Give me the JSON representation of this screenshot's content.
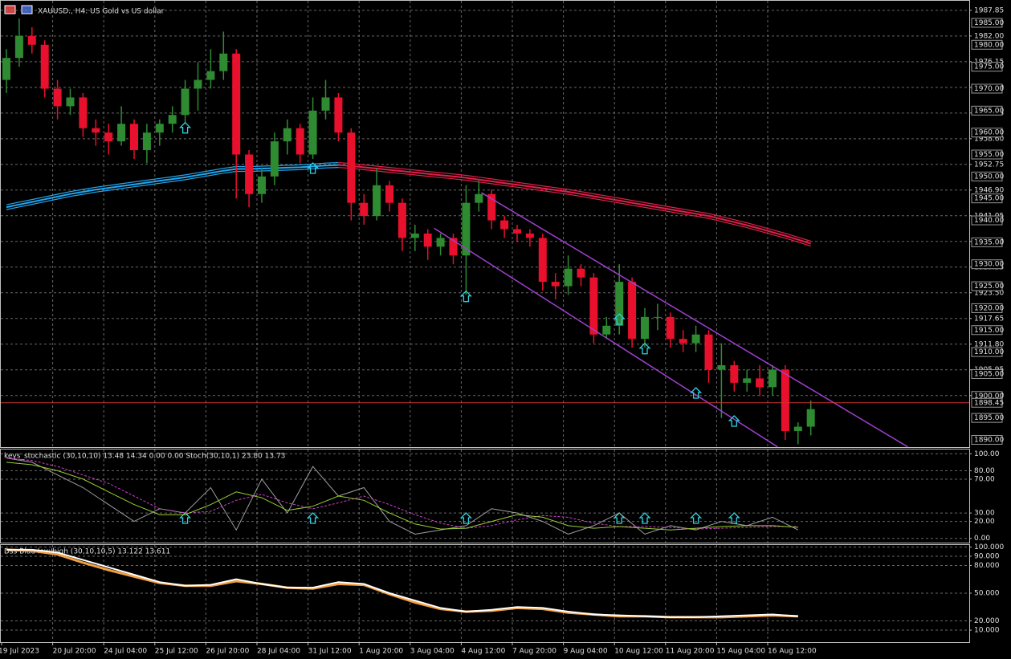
{
  "chart_data": [
    {
      "type": "candlestick",
      "title": "XAUUSD., H4: US Gold vs US dollar",
      "categories": [
        "19 Jul 2023",
        null,
        null,
        null,
        "20 Jul 20:00",
        null,
        null,
        null,
        "24 Jul 04:00",
        null,
        null,
        null,
        "25 Jul 12:00",
        null,
        null,
        null,
        "26 Jul 20:00",
        null,
        null,
        null,
        "28 Jul 04:00",
        null,
        null,
        null,
        "31 Jul 12:00",
        null,
        null,
        null,
        "1 Aug 20:00",
        null,
        null,
        null,
        "3 Aug 04:00",
        null,
        null,
        null,
        "4 Aug 12:00",
        null,
        null,
        null,
        "7 Aug 20:00",
        null,
        null,
        null,
        "9 Aug 04:00",
        null,
        null,
        null,
        "10 Aug 12:00",
        null,
        null,
        null,
        "11 Aug 20:00",
        null,
        null,
        null,
        "15 Aug 04:00",
        null,
        null,
        null,
        "16 Aug 12:00",
        null,
        null,
        null
      ],
      "open": [
        1972,
        1977,
        1982,
        1980,
        1970,
        1966,
        1968,
        1961,
        1960,
        1958,
        1962,
        1956,
        1960,
        1962,
        1964,
        1970,
        1972,
        1974,
        1978,
        1955,
        1946,
        1950,
        1958,
        1961,
        1955,
        1965,
        1968,
        1960,
        1944,
        1941,
        1948,
        1944,
        1936,
        1937,
        1934,
        1936,
        1932,
        1944,
        1946,
        1940,
        1938,
        1937,
        1936,
        1926,
        1925,
        1929,
        1927,
        1914,
        1916,
        1926,
        1913,
        1918,
        1918,
        1913,
        1912,
        1914,
        1906,
        1907,
        1903,
        1904,
        1902,
        1906,
        1892,
        1893
      ],
      "high": [
        1979,
        1986,
        1984,
        1981,
        1972,
        1970,
        1969,
        1963,
        1962,
        1966,
        1963,
        1962,
        1963,
        1966,
        1972,
        1976,
        1979,
        1983,
        1979,
        1956,
        1952,
        1960,
        1963,
        1962,
        1968,
        1972,
        1969,
        1961,
        1946,
        1952,
        1949,
        1945,
        1939,
        1938,
        1937,
        1937,
        1948,
        1949,
        1947,
        1941,
        1939,
        1938,
        1937,
        1928,
        1932,
        1930,
        1928,
        1918,
        1930,
        1927,
        1920,
        1921,
        1919,
        1915,
        1916,
        1915,
        1912,
        1908,
        1906,
        1907,
        1907,
        1907,
        1894,
        1899
      ],
      "low": [
        1969,
        1975,
        1978,
        1968,
        1963,
        1964,
        1959,
        1957,
        1955,
        1957,
        1954,
        1953,
        1957,
        1960,
        1962,
        1965,
        1970,
        1972,
        1945,
        1943,
        1944,
        1948,
        1955,
        1953,
        1954,
        1963,
        1958,
        1940,
        1939,
        1940,
        1942,
        1933,
        1933,
        1931,
        1932,
        1930,
        1923,
        1942,
        1938,
        1936,
        1935,
        1934,
        1924,
        1922,
        1923,
        1925,
        1912,
        1913,
        1914,
        1911,
        1911,
        1915,
        1911,
        1910,
        1910,
        1903,
        1895,
        1901,
        1901,
        1900,
        1900,
        1890,
        1889,
        1891
      ],
      "close": [
        1977,
        1982,
        1980,
        1970,
        1966,
        1968,
        1961,
        1960,
        1958,
        1962,
        1956,
        1960,
        1962,
        1964,
        1970,
        1972,
        1974,
        1978,
        1955,
        1946,
        1950,
        1958,
        1961,
        1955,
        1965,
        1968,
        1960,
        1944,
        1941,
        1948,
        1944,
        1936,
        1937,
        1934,
        1936,
        1932,
        1944,
        1946,
        1940,
        1938,
        1937,
        1936,
        1926,
        1925,
        1929,
        1927,
        1914,
        1916,
        1926,
        1913,
        1918,
        1918,
        1913,
        1912,
        1914,
        1906,
        1907,
        1903,
        1904,
        1902,
        1906,
        1892,
        1893,
        1897
      ],
      "up_color": "#2e8b32",
      "down_color": "#e8102c",
      "series": [
        {
          "color": "#22a7f0",
          "values": [
            1943,
            1943.6,
            1944.2,
            1944.8,
            1945.4,
            1946,
            1946.5,
            1947,
            1947.4,
            1947.8,
            1948.2,
            1948.6,
            1949,
            1949.4,
            1949.8,
            1950.3,
            1950.8,
            1951.3,
            1951.7,
            1951.7,
            1951.8,
            1951.9,
            1952,
            1952.1,
            1952.3,
            1952.5,
            1952.6,
            null,
            null,
            null,
            null,
            null,
            null,
            null,
            null,
            null,
            null,
            null,
            null,
            null,
            null,
            null,
            null,
            null,
            null,
            null,
            null,
            null,
            null,
            null,
            null,
            null,
            null,
            null,
            null,
            null,
            null,
            null,
            null,
            null,
            null,
            null,
            null,
            null
          ]
        },
        {
          "color": "#e0204a",
          "values": [
            null,
            null,
            null,
            null,
            null,
            null,
            null,
            null,
            null,
            null,
            null,
            null,
            null,
            null,
            null,
            null,
            null,
            null,
            null,
            null,
            null,
            null,
            null,
            null,
            null,
            null,
            1952.6,
            1952.4,
            1952.1,
            1951.8,
            1951.5,
            1951.2,
            1950.9,
            1950.6,
            1950.3,
            1950,
            1949.7,
            1949.3,
            1948.9,
            1948.5,
            1948.1,
            1947.7,
            1947.3,
            1946.9,
            1946.5,
            1946,
            1945.5,
            1945,
            1944.5,
            1944,
            1943.5,
            1943,
            1942.5,
            1942,
            1941.5,
            1941,
            1940.3,
            1939.6,
            1938.9,
            1938.1,
            1937.3,
            1936.5,
            1935.6,
            1934.7
          ]
        }
      ],
      "channels": [
        {
          "color": "#a040d0",
          "x": [
            37.2,
            70.6
          ],
          "y": [
            1946.3,
            1888.4
          ]
        },
        {
          "color": "#a040d0",
          "x": [
            33.5,
            60.4
          ],
          "y": [
            1938.2,
            1888.4
          ]
        }
      ],
      "signals": {
        "color": "#30d0e0",
        "x": [
          14,
          24,
          36,
          48,
          50,
          54,
          57
        ],
        "y": [
          1961,
          1951.8,
          1922.6,
          1917.4,
          1910.7,
          1900.6,
          1894.2
        ]
      },
      "price_line": {
        "value": 1898.45,
        "color": "#c83232"
      },
      "ylim": [
        1888.35,
        1990.2
      ],
      "yticks": [
        1987.85,
        {
          "value": 1982,
          "label": "1982.00"
        },
        1976.15,
        {
          "value": 1970.3,
          "label": "1970.30"
        },
        1964.45,
        {
          "value": 1958.6,
          "label": "1958.60"
        },
        1952.75,
        {
          "value": 1946.9,
          "label": "1946.90"
        },
        1941.05,
        {
          "value": 1935.2,
          "label": "1935.20"
        },
        1929.35,
        {
          "value": 1923.5,
          "label": "1923.50"
        },
        1917.65,
        {
          "value": 1911.8,
          "label": "1911.80"
        },
        1905.95,
        {
          "value": 1900.1,
          "label": "1900.10"
        }
      ],
      "levels": [
        {
          "value": 1985,
          "label": "1985.00"
        },
        {
          "value": 1980,
          "label": "1980.00"
        },
        {
          "value": 1975,
          "label": "1975.00"
        },
        {
          "value": 1970,
          "label": "1970.00"
        },
        {
          "value": 1965,
          "label": "1965.00"
        },
        {
          "value": 1960,
          "label": "1960.00"
        },
        {
          "value": 1955,
          "label": "1955.00"
        },
        {
          "value": 1950,
          "label": "1950.00"
        },
        {
          "value": 1945,
          "label": "1945.00"
        },
        {
          "value": 1940,
          "label": "1940.00"
        },
        {
          "value": 1935,
          "label": "1935.00"
        },
        {
          "value": 1930,
          "label": "1930.00"
        },
        {
          "value": 1925,
          "label": "1925.00"
        },
        {
          "value": 1920,
          "label": "1920.00"
        },
        {
          "value": 1915,
          "label": "1915.00"
        },
        {
          "value": 1910,
          "label": "1910.00"
        },
        {
          "value": 1905,
          "label": "1905.00"
        },
        {
          "value": 1900,
          "label": "1900.00"
        },
        {
          "value": 1895,
          "label": "1895.00"
        },
        {
          "value": 1890,
          "label": "1890.00"
        }
      ],
      "grid": true
    },
    {
      "type": "line",
      "title": "keys_stochastic (30,10,10) 13.48 14.34 0.00 0.00 Stoch(30,10,1) 23.80 13.73",
      "x": [
        0,
        2,
        4,
        6,
        8,
        10,
        12,
        14,
        16,
        18,
        20,
        22,
        24,
        26,
        28,
        30,
        32,
        34,
        36,
        38,
        40,
        42,
        44,
        46,
        48,
        50,
        52,
        54,
        56,
        58,
        60,
        62
      ],
      "series": [
        {
          "color": "#a0a0a0",
          "values": [
            95,
            90,
            75,
            60,
            40,
            20,
            35,
            30,
            60,
            10,
            70,
            30,
            85,
            50,
            60,
            20,
            5,
            10,
            15,
            35,
            30,
            20,
            5,
            15,
            30,
            5,
            15,
            10,
            20,
            15,
            25,
            10
          ]
        },
        {
          "color": "#d040d0",
          "dash": true,
          "values": [
            95,
            92,
            85,
            75,
            65,
            50,
            35,
            30,
            32,
            45,
            52,
            42,
            35,
            42,
            50,
            40,
            28,
            18,
            12,
            15,
            22,
            27,
            25,
            18,
            14,
            14,
            13,
            11,
            12,
            13,
            14,
            14
          ]
        },
        {
          "color": "#9acd32",
          "values": [
            90,
            87,
            80,
            70,
            55,
            40,
            28,
            28,
            40,
            55,
            48,
            33,
            38,
            50,
            45,
            30,
            17,
            11,
            12,
            20,
            28,
            25,
            15,
            12,
            14,
            12,
            10,
            12,
            14,
            15,
            15,
            13
          ]
        }
      ],
      "ylim": [
        -5,
        106
      ],
      "yticks": [
        {
          "value": 100,
          "label": "100.00"
        },
        {
          "value": 80,
          "label": "80.00"
        },
        {
          "value": 70,
          "label": "70.00"
        },
        {
          "value": 30,
          "label": "30.00"
        },
        {
          "value": 20,
          "label": "20.00"
        },
        {
          "value": 0,
          "label": "0.00"
        }
      ],
      "grid": true
    },
    {
      "type": "line",
      "title": "Dss Blau low/high (30,10,10,5) 13.122 13.611",
      "x": [
        0,
        2,
        4,
        6,
        8,
        10,
        12,
        14,
        16,
        18,
        20,
        22,
        24,
        26,
        28,
        30,
        32,
        34,
        36,
        38,
        40,
        42,
        44,
        46,
        48,
        50,
        52,
        54,
        56,
        58,
        60,
        62
      ],
      "series": [
        {
          "color": "#f0a040",
          "width": 3,
          "values": [
            97,
            96,
            92,
            83,
            75,
            68,
            61,
            58,
            58,
            63,
            60,
            56,
            55,
            60,
            59,
            49,
            40,
            33,
            30,
            31,
            34,
            33,
            29,
            27,
            25,
            25,
            24,
            24,
            24,
            25,
            26,
            25
          ]
        },
        {
          "color": "#ffffff",
          "width": 2,
          "values": [
            97,
            97,
            94,
            86,
            78,
            70,
            62,
            58,
            59,
            65,
            60,
            56,
            56,
            62,
            60,
            50,
            42,
            34,
            30,
            32,
            35,
            34,
            30,
            27,
            26,
            25,
            24,
            24,
            25,
            26,
            27,
            25
          ]
        }
      ],
      "ylim": [
        -3,
        103
      ],
      "yticks": [
        {
          "value": 100,
          "label": "100.000"
        },
        {
          "value": 90,
          "label": "90.000"
        },
        {
          "value": 80,
          "label": "80.000"
        },
        {
          "value": 50,
          "label": "50.000"
        },
        {
          "value": 20,
          "label": "20.000"
        },
        {
          "value": 10,
          "label": "10.000"
        }
      ],
      "grid": true
    }
  ]
}
